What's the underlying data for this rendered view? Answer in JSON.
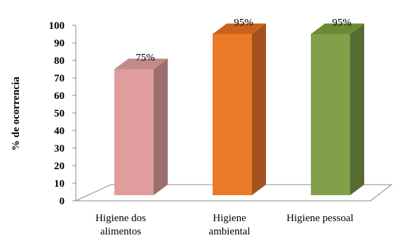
{
  "chart_data": {
    "type": "bar",
    "title": "",
    "xlabel": "",
    "ylabel": "% de ocorrencia",
    "ylim": [
      0,
      100
    ],
    "yticks": [
      0,
      10,
      20,
      30,
      40,
      50,
      60,
      70,
      80,
      90,
      100
    ],
    "grid": false,
    "legend": "none",
    "style": "3d-column",
    "categories": [
      [
        "Higiene dos",
        "alimentos"
      ],
      [
        "Higiene",
        "ambiental"
      ],
      [
        "Higiene pessoal"
      ]
    ],
    "values": [
      75,
      95,
      95
    ],
    "data_labels": [
      "75%",
      "95%",
      "95%"
    ],
    "colors": [
      {
        "front": "#df9e9d",
        "side": "#9c6e6d",
        "top": "#c28a89"
      },
      {
        "front": "#ea7a28",
        "side": "#a3521f",
        "top": "#c9621c"
      },
      {
        "front": "#82a04a",
        "side": "#566b32",
        "top": "#6a8a38"
      }
    ],
    "floor_color": "#888888"
  }
}
